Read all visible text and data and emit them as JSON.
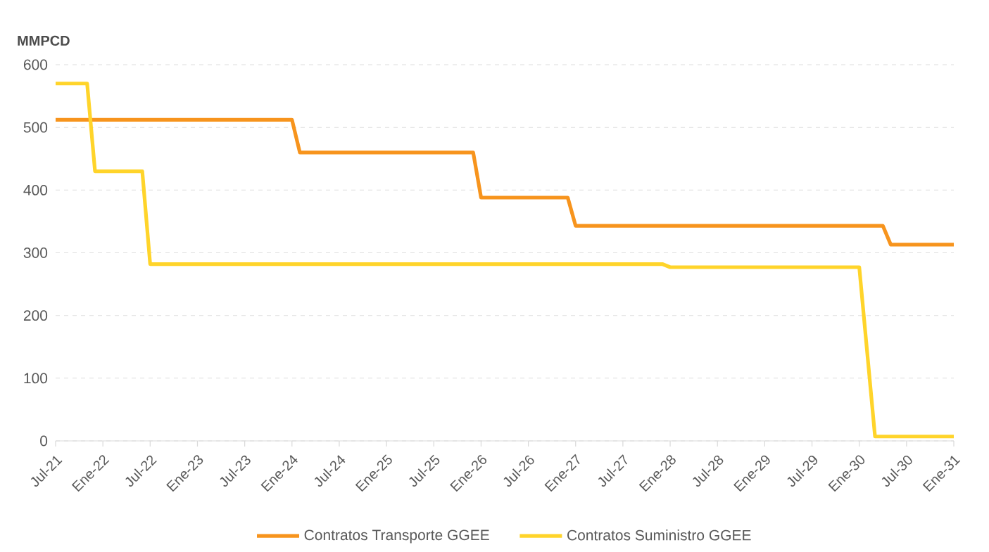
{
  "chart_data": {
    "type": "line",
    "ylabel": "MMPCD",
    "series": [
      {
        "name": "Contratos Transporte GGEE",
        "color": "#f7941d",
        "x": [
          "2021-07",
          "2024-01",
          "2024-02",
          "2025-12",
          "2026-01",
          "2026-12",
          "2027-01",
          "2030-04",
          "2030-05",
          "2031-01"
        ],
        "values": [
          512,
          512,
          460,
          460,
          388,
          388,
          343,
          343,
          313,
          313
        ]
      },
      {
        "name": "Contratos Suministro GGEE",
        "color": "#ffd42a",
        "x": [
          "2021-07",
          "2021-11",
          "2021-12",
          "2022-06",
          "2022-07",
          "2027-12",
          "2028-01",
          "2030-01",
          "2030-03",
          "2031-01"
        ],
        "values": [
          570,
          570,
          430,
          430,
          282,
          282,
          277,
          277,
          7,
          7
        ]
      }
    ],
    "xlim": [
      "2021-07",
      "2031-01"
    ],
    "xticks": [
      {
        "value": "2021-07",
        "label": "Jul-21"
      },
      {
        "value": "2022-01",
        "label": "Ene-22"
      },
      {
        "value": "2022-07",
        "label": "Jul-22"
      },
      {
        "value": "2023-01",
        "label": "Ene-23"
      },
      {
        "value": "2023-07",
        "label": "Jul-23"
      },
      {
        "value": "2024-01",
        "label": "Ene-24"
      },
      {
        "value": "2024-07",
        "label": "Jul-24"
      },
      {
        "value": "2025-01",
        "label": "Ene-25"
      },
      {
        "value": "2025-07",
        "label": "Jul-25"
      },
      {
        "value": "2026-01",
        "label": "Ene-26"
      },
      {
        "value": "2026-07",
        "label": "Jul-26"
      },
      {
        "value": "2027-01",
        "label": "Ene-27"
      },
      {
        "value": "2027-07",
        "label": "Jul-27"
      },
      {
        "value": "2028-01",
        "label": "Ene-28"
      },
      {
        "value": "2028-07",
        "label": "Jul-28"
      },
      {
        "value": "2029-01",
        "label": "Ene-29"
      },
      {
        "value": "2029-07",
        "label": "Jul-29"
      },
      {
        "value": "2030-01",
        "label": "Ene-30"
      },
      {
        "value": "2030-07",
        "label": "Jul-30"
      },
      {
        "value": "2031-01",
        "label": "Ene-31"
      }
    ],
    "ylim": [
      0,
      600
    ],
    "yticks": [
      0,
      100,
      200,
      300,
      400,
      500,
      600
    ],
    "grid": "y",
    "legend": "bottom",
    "marker": "none",
    "line_style": "solid"
  }
}
